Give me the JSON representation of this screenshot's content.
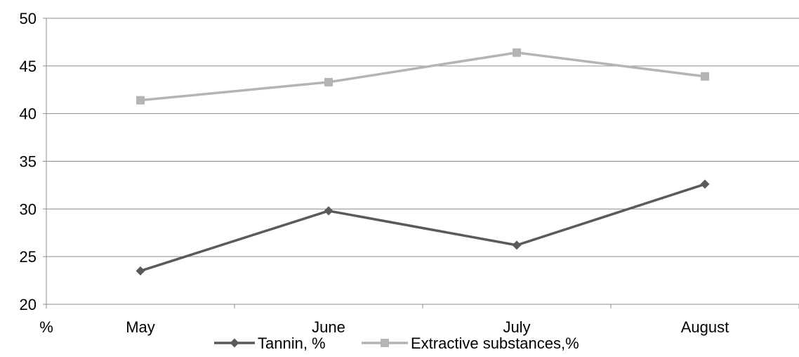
{
  "chart_data": {
    "type": "line",
    "categories": [
      "May",
      "June",
      "July",
      "August"
    ],
    "series": [
      {
        "name": "Tannin, %",
        "values": [
          23.5,
          29.8,
          26.2,
          32.6
        ],
        "color": "#5a5a5a",
        "marker": "diamond"
      },
      {
        "name": "Extractive substances,%",
        "values": [
          41.4,
          43.3,
          46.4,
          43.9
        ],
        "color": "#b4b4b4",
        "marker": "square"
      }
    ],
    "ylim": [
      20,
      50
    ],
    "yticks": [
      20,
      25,
      30,
      35,
      40,
      45,
      50
    ],
    "axis_unit_label": "%",
    "grid": true,
    "legend_position": "bottom"
  }
}
